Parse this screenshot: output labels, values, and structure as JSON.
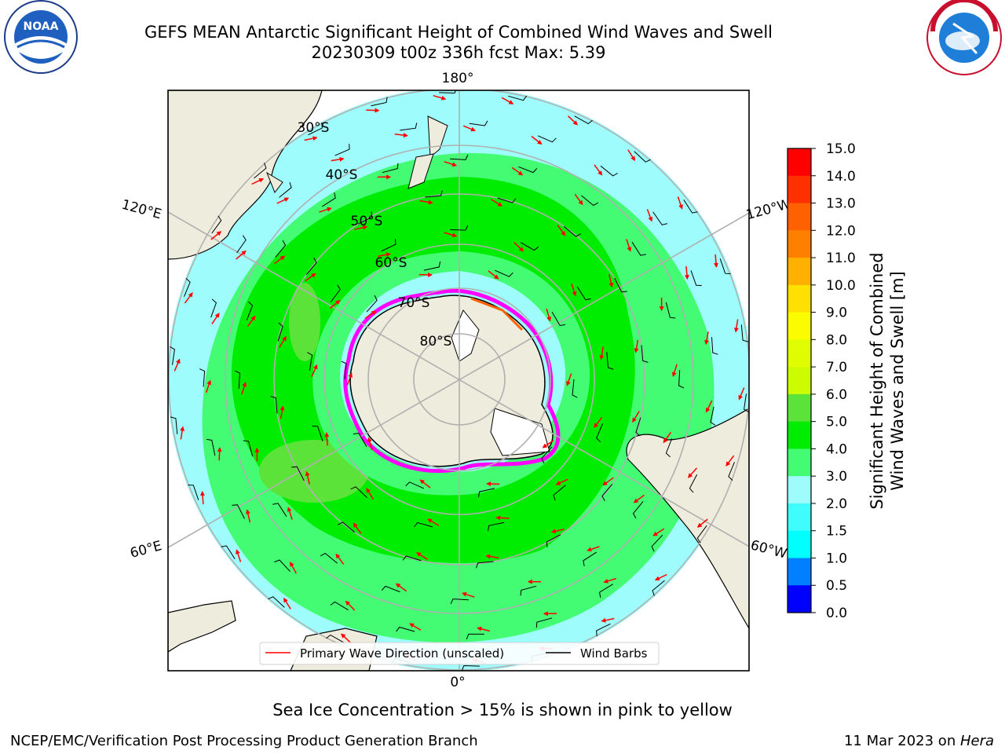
{
  "title": {
    "line1": "GEFS MEAN Antarctic Significant Height of Combined Wind Waves and Swell",
    "line2": "20230309 t00z 336h fcst   Max: 5.39"
  },
  "logos": {
    "left": "NOAA",
    "right": "NATIONAL WEATHER SERVICE"
  },
  "map": {
    "projection": "south-polar-stereographic",
    "longitude_labels": {
      "top": "180°",
      "bottom": "0°",
      "left_upper": "120°E",
      "left_lower": "60°E",
      "right_upper": "120°W",
      "right_lower": "60°W"
    },
    "latitude_labels": [
      "30°S",
      "40°S",
      "50°S",
      "60°S",
      "70°S",
      "80°S"
    ],
    "colors": {
      "land": "#eeecdc",
      "ocean_low": "#9ffcfc",
      "band_3_4": "#44fc74",
      "band_4_5": "#00ec00",
      "band_5_6": "#5ce33a",
      "ice_edge": "#ff00ff",
      "arrow": "#ff0000",
      "barb": "#000000"
    }
  },
  "legend": {
    "primary_wave": "Primary Wave Direction (unscaled)",
    "wind_barbs": "Wind Barbs",
    "wave_color": "#ff0000",
    "barb_color": "#000000"
  },
  "colorbar": {
    "label_line1": "Significant Height of Combined",
    "label_line2": "Wind Waves and Swell [m]",
    "ticks": [
      "15.0",
      "14.0",
      "13.0",
      "12.0",
      "11.0",
      "10.0",
      "9.0",
      "8.0",
      "7.0",
      "6.0",
      "5.0",
      "4.0",
      "3.0",
      "2.0",
      "1.5",
      "1.0",
      "0.5",
      "0.0"
    ],
    "colors": [
      "#0000ff",
      "#0080ff",
      "#00ffff",
      "#40fcfc",
      "#9ffcfc",
      "#44fc74",
      "#00ec00",
      "#5ce33a",
      "#cdfc00",
      "#e0fc00",
      "#fcfc00",
      "#ffe000",
      "#ffb000",
      "#ff8000",
      "#ff6000",
      "#ff3000",
      "#ff0000"
    ]
  },
  "caption": "Sea Ice Concentration > 15% is shown in pink to yellow",
  "footer": {
    "left": "NCEP/EMC/Verification Post Processing Product Generation Branch",
    "date": "11 Mar 2023 on ",
    "host": "Hera"
  }
}
